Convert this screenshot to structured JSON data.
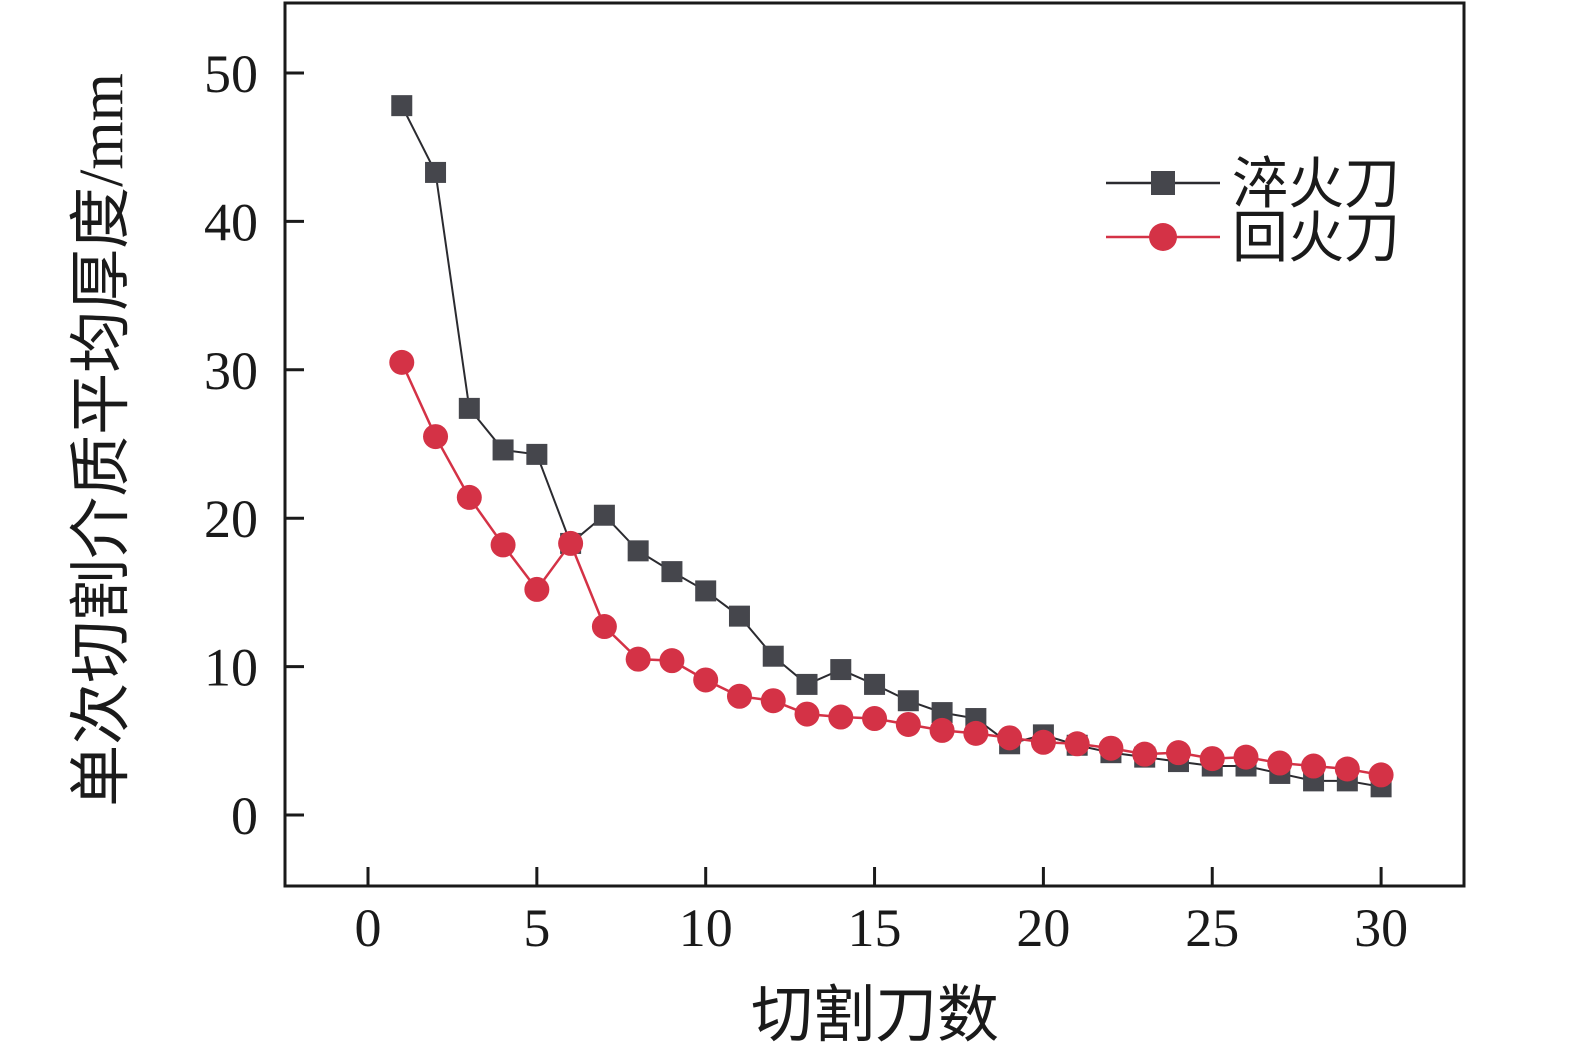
{
  "figure": {
    "background": "#ffffff",
    "frame_color": "#1a1a1a"
  },
  "chart_data": {
    "type": "line",
    "title": "",
    "xlabel": "切割刀数",
    "ylabel": "单次切割介质平均厚度/mm",
    "grid": false,
    "legend_position": "upper-right-inside",
    "xlim": [
      -2.5,
      32.5
    ],
    "ylim": [
      -4.8,
      54.7
    ],
    "x_ticks": [
      0,
      5,
      10,
      15,
      20,
      25,
      30
    ],
    "y_ticks": [
      0,
      10,
      20,
      30,
      40,
      50
    ],
    "x": [
      1,
      2,
      3,
      4,
      5,
      6,
      7,
      8,
      9,
      10,
      11,
      12,
      13,
      14,
      15,
      16,
      17,
      18,
      19,
      20,
      21,
      22,
      23,
      24,
      25,
      26,
      27,
      28,
      29,
      30
    ],
    "series": [
      {
        "name": "淬火刀",
        "marker": "square",
        "marker_color": "#45464c",
        "line_color": "#2b2b30",
        "values": [
          47.8,
          43.3,
          27.4,
          24.6,
          24.3,
          18.3,
          20.2,
          17.8,
          16.4,
          15.1,
          13.4,
          10.7,
          8.8,
          9.8,
          8.8,
          7.7,
          6.9,
          6.5,
          4.8,
          5.4,
          4.7,
          4.2,
          3.9,
          3.6,
          3.3,
          3.3,
          2.8,
          2.3,
          2.3,
          1.9
        ]
      },
      {
        "name": "回火刀",
        "marker": "circle",
        "marker_color": "#d43246",
        "line_color": "#d43246",
        "values": [
          30.5,
          25.5,
          21.4,
          18.2,
          15.2,
          18.3,
          12.7,
          10.5,
          10.4,
          9.1,
          8.0,
          7.7,
          6.8,
          6.6,
          6.5,
          6.1,
          5.7,
          5.5,
          5.2,
          4.9,
          4.8,
          4.5,
          4.1,
          4.2,
          3.8,
          3.9,
          3.5,
          3.3,
          3.1,
          2.7
        ]
      }
    ]
  }
}
